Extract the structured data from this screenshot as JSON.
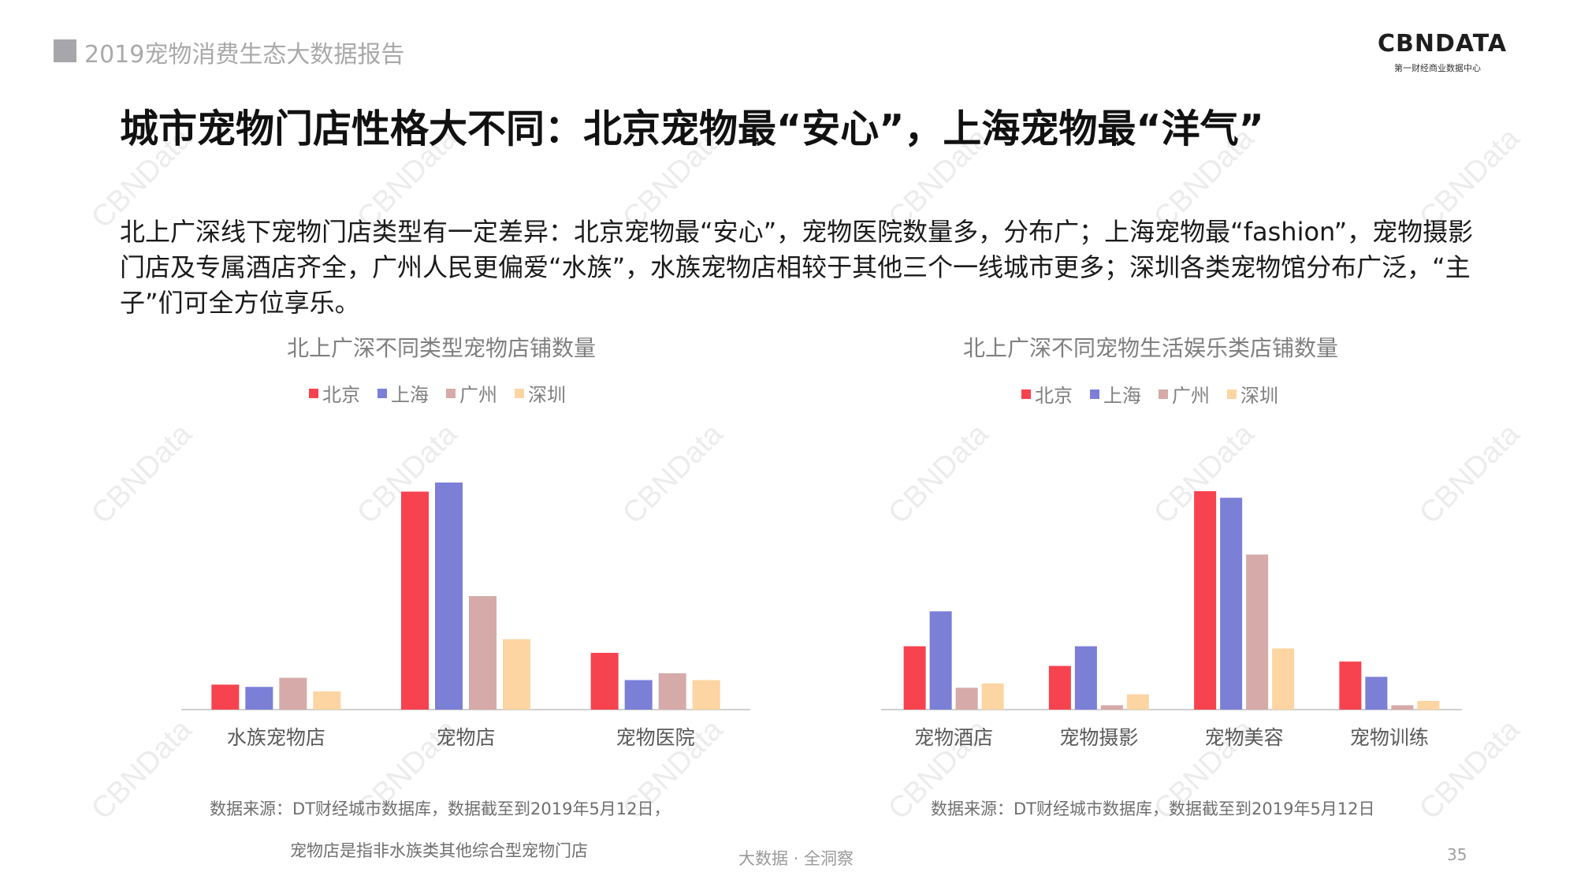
{
  "header": {
    "report_title": "2019宠物消费生态大数据报告"
  },
  "logo": {
    "name": "CBNDATA",
    "subtitle": "第一财经商业数据中心"
  },
  "title": "城市宠物门店性格大不同：北京宠物最“安心”，上海宠物最“洋气”",
  "description": "北上广深线下宠物门店类型有一定差异：北京宠物最“安心”，宠物医院数量多，分布广；上海宠物最“fashion”，宠物摄影门店及专属酒店齐全，广州人民更偏爱“水族”，水族宠物店相较于其他三个一线城市更多；深圳各类宠物馆分布广泛，“主子”们可全方位享乐。",
  "colors": {
    "北京": "#f7434f",
    "上海": "#7b7fd6",
    "广州": "#d5aaa8",
    "深圳": "#fdd5a2"
  },
  "chart_data": [
    {
      "type": "bar",
      "title": "北上广深不同类型宠物店铺数量",
      "categories": [
        "水族宠物店",
        "宠物店",
        "宠物医院"
      ],
      "series": [
        {
          "name": "北京",
          "values": [
            11,
            96,
            25
          ]
        },
        {
          "name": "上海",
          "values": [
            10,
            100,
            13
          ]
        },
        {
          "name": "广州",
          "values": [
            14,
            50,
            16
          ]
        },
        {
          "name": "深圳",
          "values": [
            8,
            31,
            13
          ]
        }
      ],
      "ylim": [
        0,
        100
      ],
      "legend": "top",
      "grid": false
    },
    {
      "type": "bar",
      "title": "北上广深不同宠物生活娱乐类店铺数量",
      "categories": [
        "宠物酒店",
        "宠物摄影",
        "宠物美容",
        "宠物训练"
      ],
      "series": [
        {
          "name": "北京",
          "values": [
            29,
            20,
            100,
            22
          ]
        },
        {
          "name": "上海",
          "values": [
            45,
            29,
            97,
            15
          ]
        },
        {
          "name": "广州",
          "values": [
            10,
            2,
            71,
            2
          ]
        },
        {
          "name": "深圳",
          "values": [
            12,
            7,
            28,
            4
          ]
        }
      ],
      "ylim": [
        0,
        100
      ],
      "legend": "top",
      "grid": false
    }
  ],
  "sources": {
    "left_line1": "数据来源：DT财经城市数据库，数据截至到2019年5月12日，",
    "left_line2": "宠物店是指非水族类其他综合型宠物门店",
    "right": "数据来源：DT财经城市数据库，数据截至到2019年5月12日"
  },
  "footer": {
    "tagline": "大数据 · 全洞察",
    "page": "35"
  },
  "watermark": "CBNData"
}
